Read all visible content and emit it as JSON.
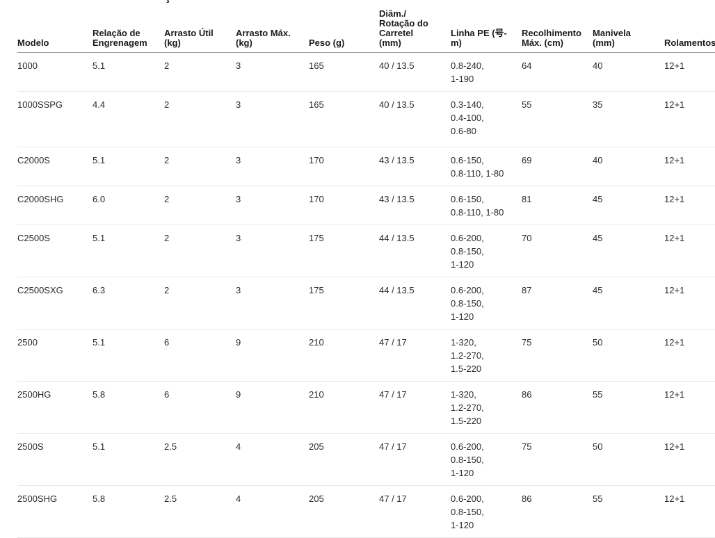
{
  "page": {
    "background": "#ffffff",
    "top_artifact_glyph": "ç"
  },
  "colors": {
    "text": "#2a2a2a",
    "header_text": "#1a1a1a",
    "header_border": "#9e9e9e",
    "row_border": "#e8e8e8"
  },
  "table": {
    "columns": [
      {
        "id": "modelo",
        "label": [
          "Modelo"
        ]
      },
      {
        "id": "relacao",
        "label": [
          "Relação de",
          "Engrenagem"
        ]
      },
      {
        "id": "arrasto_util",
        "label": [
          "Arrasto Útil",
          "(kg)"
        ]
      },
      {
        "id": "arrasto_max",
        "label": [
          "Arrasto Máx.",
          "(kg)"
        ]
      },
      {
        "id": "peso",
        "label": [
          "Peso (g)"
        ]
      },
      {
        "id": "diam",
        "label": [
          "Diâm./",
          "Rotação do",
          "Carretel",
          "(mm)"
        ]
      },
      {
        "id": "linha_pe",
        "label": [
          "Linha PE (号-",
          "m)"
        ]
      },
      {
        "id": "recolhimento",
        "label": [
          "Recolhimento",
          "Máx. (cm)"
        ]
      },
      {
        "id": "manivela",
        "label": [
          "Manivela",
          "(mm)"
        ]
      },
      {
        "id": "rolamentos",
        "label": [
          "Rolamentos"
        ]
      }
    ],
    "rows": [
      {
        "modelo": "1000",
        "relacao": "5.1",
        "arrasto_util": "2",
        "arrasto_max": "3",
        "peso": "165",
        "diam": "40 / 13.5",
        "linha_pe": [
          "0.8-240,",
          "1-190"
        ],
        "recolhimento": "64",
        "manivela": "40",
        "rolamentos": "12+1"
      },
      {
        "modelo": "1000SSPG",
        "relacao": "4.4",
        "arrasto_util": "2",
        "arrasto_max": "3",
        "peso": "165",
        "diam": "40 / 13.5",
        "linha_pe": [
          "0.3-140,",
          "0.4-100,",
          "0.6-80"
        ],
        "recolhimento": "55",
        "manivela": "35",
        "rolamentos": "12+1"
      },
      {
        "modelo": "C2000S",
        "relacao": "5.1",
        "arrasto_util": "2",
        "arrasto_max": "3",
        "peso": "170",
        "diam": "43 / 13.5",
        "linha_pe": [
          "0.6-150,",
          "0.8-110, 1-80"
        ],
        "recolhimento": "69",
        "manivela": "40",
        "rolamentos": "12+1"
      },
      {
        "modelo": "C2000SHG",
        "relacao": "6.0",
        "arrasto_util": "2",
        "arrasto_max": "3",
        "peso": "170",
        "diam": "43 / 13.5",
        "linha_pe": [
          "0.6-150,",
          "0.8-110, 1-80"
        ],
        "recolhimento": "81",
        "manivela": "45",
        "rolamentos": "12+1"
      },
      {
        "modelo": "C2500S",
        "relacao": "5.1",
        "arrasto_util": "2",
        "arrasto_max": "3",
        "peso": "175",
        "diam": "44 / 13.5",
        "linha_pe": [
          "0.6-200,",
          "0.8-150,",
          "1-120"
        ],
        "recolhimento": "70",
        "manivela": "45",
        "rolamentos": "12+1"
      },
      {
        "modelo": "C2500SXG",
        "relacao": "6.3",
        "arrasto_util": "2",
        "arrasto_max": "3",
        "peso": "175",
        "diam": "44 / 13.5",
        "linha_pe": [
          "0.6-200,",
          "0.8-150,",
          "1-120"
        ],
        "recolhimento": "87",
        "manivela": "45",
        "rolamentos": "12+1"
      },
      {
        "modelo": "2500",
        "relacao": "5.1",
        "arrasto_util": "6",
        "arrasto_max": "9",
        "peso": "210",
        "diam": "47 / 17",
        "linha_pe": [
          "1-320,",
          "1.2-270,",
          "1.5-220"
        ],
        "recolhimento": "75",
        "manivela": "50",
        "rolamentos": "12+1"
      },
      {
        "modelo": "2500HG",
        "relacao": "5.8",
        "arrasto_util": "6",
        "arrasto_max": "9",
        "peso": "210",
        "diam": "47 / 17",
        "linha_pe": [
          "1-320,",
          "1.2-270,",
          "1.5-220"
        ],
        "recolhimento": "86",
        "manivela": "55",
        "rolamentos": "12+1"
      },
      {
        "modelo": "2500S",
        "relacao": "5.1",
        "arrasto_util": "2.5",
        "arrasto_max": "4",
        "peso": "205",
        "diam": "47 / 17",
        "linha_pe": [
          "0.6-200,",
          "0.8-150,",
          "1-120"
        ],
        "recolhimento": "75",
        "manivela": "50",
        "rolamentos": "12+1"
      },
      {
        "modelo": "2500SHG",
        "relacao": "5.8",
        "arrasto_util": "2.5",
        "arrasto_max": "4",
        "peso": "205",
        "diam": "47 / 17",
        "linha_pe": [
          "0.6-200,",
          "0.8-150,",
          "1-120"
        ],
        "recolhimento": "86",
        "manivela": "55",
        "rolamentos": "12+1"
      }
    ]
  }
}
